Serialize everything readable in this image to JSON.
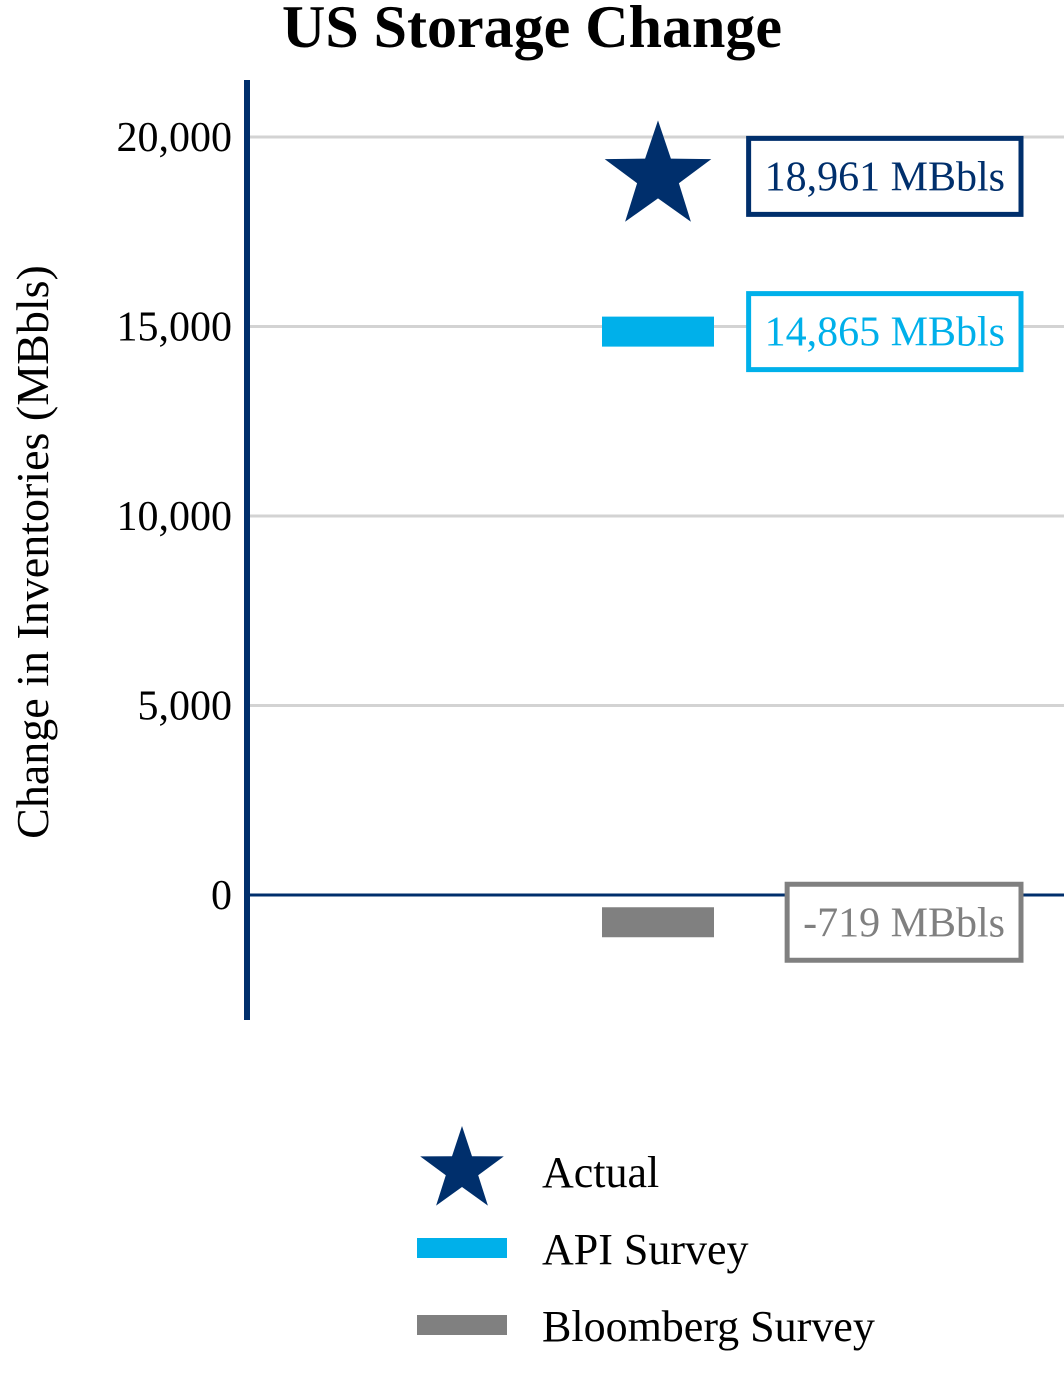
{
  "chart_data": {
    "type": "scatter",
    "title": "US Storage Change",
    "ylabel": "Change in Inventories (MBbls)",
    "xlabel": "",
    "ylim": [
      -3300,
      21500
    ],
    "yticks": [
      0,
      5000,
      10000,
      15000,
      20000
    ],
    "ytick_labels": [
      "0",
      "5,000",
      "10,000",
      "15,000",
      "20,000"
    ],
    "grid": true,
    "legend_position": "bottom",
    "series": [
      {
        "name": "Actual",
        "marker": "star",
        "value": 18961,
        "label": "18,961 MBbls",
        "color": "#002f6c"
      },
      {
        "name": "API Survey",
        "marker": "bar",
        "value": 14865,
        "label": "14,865 MBbls",
        "color": "#00b0ea"
      },
      {
        "name": "Bloomberg Survey",
        "marker": "bar",
        "value": -719,
        "label": "-719 MBbls",
        "color": "#808080"
      }
    ],
    "colors": {
      "axis": "#002f6c",
      "grid": "#d3d3d3",
      "zero_line": "#002f6c",
      "text": "#000000"
    }
  }
}
